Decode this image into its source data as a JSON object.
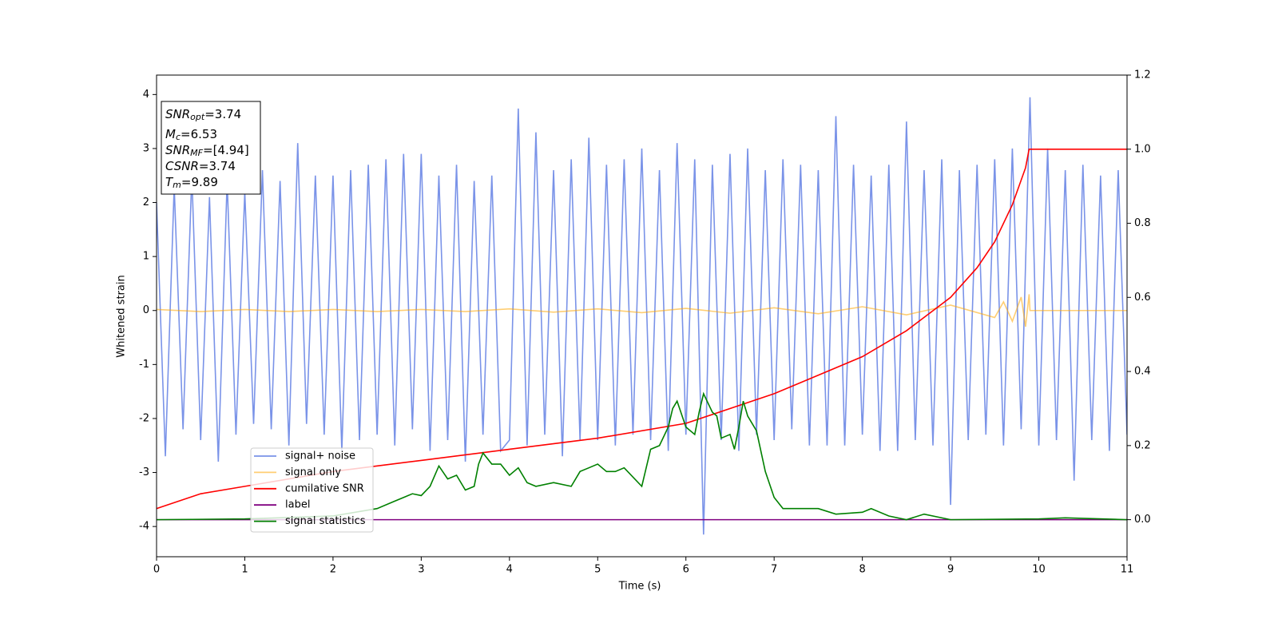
{
  "chart_data": {
    "type": "line",
    "xlabel": "Time (s)",
    "ylabel": "Whitened strain",
    "xlim": [
      0,
      11
    ],
    "xticks": [
      0,
      1,
      2,
      3,
      4,
      5,
      6,
      7,
      8,
      9,
      10,
      11
    ],
    "ylim": [
      -4.56,
      4.36
    ],
    "yticks": [
      -4,
      -3,
      -2,
      -1,
      0,
      1,
      2,
      3,
      4
    ],
    "y2lim": [
      -0.1,
      1.2
    ],
    "y2ticks": [
      {
        "value": 0,
        "label": "0.0"
      },
      0.2,
      0.4,
      0.6,
      0.8,
      {
        "value": 1,
        "label": "1.0"
      },
      1.2
    ],
    "legend_loc": "lower left",
    "annotations": [
      {
        "base": "SNR",
        "sub": "opt",
        "text": "=3.74"
      },
      {
        "base": "M",
        "sub": "c",
        "text": "=6.53"
      },
      {
        "base": "SNR",
        "sub": "MF",
        "text": "=[4.94]"
      },
      {
        "base": "CSNR",
        "sub": null,
        "text": "=3.74"
      },
      {
        "base": "T",
        "sub": "m",
        "text": "=9.89"
      }
    ],
    "series": [
      {
        "name": "signal+ noise",
        "color": "#7a93e8",
        "x": [
          0,
          0.1,
          0.2,
          0.3,
          0.4,
          0.5,
          0.6,
          0.7,
          0.8,
          0.9,
          1,
          1.1,
          1.2,
          1.3,
          1.4,
          1.5,
          1.6,
          1.7,
          1.8,
          1.9,
          2,
          2.1,
          2.2,
          2.3,
          2.4,
          2.5,
          2.6,
          2.7,
          2.8,
          2.9,
          3,
          3.1,
          3.2,
          3.3,
          3.4,
          3.5,
          3.6,
          3.7,
          3.8,
          3.9,
          4,
          4.1,
          4.2,
          4.3,
          4.4,
          4.5,
          4.6,
          4.7,
          4.8,
          4.9,
          5,
          5.1,
          5.2,
          5.3,
          5.4,
          5.5,
          5.6,
          5.7,
          5.8,
          5.9,
          6,
          6.1,
          6.2,
          6.3,
          6.4,
          6.5,
          6.6,
          6.7,
          6.8,
          6.9,
          7,
          7.1,
          7.2,
          7.3,
          7.4,
          7.5,
          7.6,
          7.7,
          7.8,
          7.9,
          8,
          8.1,
          8.2,
          8.3,
          8.4,
          8.5,
          8.6,
          8.7,
          8.8,
          8.9,
          9,
          9.1,
          9.2,
          9.3,
          9.4,
          9.5,
          9.6,
          9.7,
          9.8,
          9.9,
          10,
          10.1,
          10.2,
          10.3,
          10.4,
          10.5,
          10.6,
          10.7,
          10.8,
          10.9,
          11
        ],
        "values": [
          2.0,
          -2.7,
          2.3,
          -2.2,
          2.5,
          -2.4,
          2.1,
          -2.8,
          2.4,
          -2.3,
          2.2,
          -2.1,
          2.6,
          -2.2,
          2.4,
          -2.5,
          3.1,
          -2.1,
          2.5,
          -2.3,
          2.5,
          -2.6,
          2.6,
          -2.4,
          2.7,
          -2.3,
          2.8,
          -2.5,
          2.9,
          -2.2,
          2.9,
          -2.6,
          2.5,
          -2.4,
          2.7,
          -2.8,
          2.4,
          -2.3,
          2.5,
          -2.6,
          -2.4,
          3.74,
          -2.5,
          3.3,
          -2.3,
          2.6,
          -2.7,
          2.8,
          -2.4,
          3.2,
          -2.4,
          2.7,
          -2.5,
          2.8,
          -2.3,
          3.0,
          -2.4,
          2.6,
          -2.6,
          3.1,
          -2.3,
          2.8,
          -4.15,
          2.7,
          -2.4,
          2.9,
          -2.6,
          3.0,
          -2.3,
          2.6,
          -2.4,
          2.8,
          -2.2,
          2.7,
          -2.5,
          2.6,
          -2.5,
          3.6,
          -2.5,
          2.7,
          -2.3,
          2.5,
          -2.6,
          2.7,
          -2.6,
          3.5,
          -2.4,
          2.6,
          -2.5,
          2.8,
          -3.6,
          2.6,
          -2.4,
          2.7,
          -2.3,
          2.8,
          -2.5,
          3.0,
          -2.2,
          3.95,
          -2.5,
          3.0,
          -2.4,
          2.6,
          -3.15,
          2.7,
          -2.4,
          2.5,
          -2.6,
          2.6,
          -2.3
        ]
      },
      {
        "name": "signal only",
        "color": "#ffa500",
        "x": [
          0,
          0.5,
          1,
          1.5,
          2,
          2.5,
          3,
          3.5,
          4,
          4.5,
          5,
          5.5,
          6,
          6.5,
          7,
          7.5,
          8,
          8.5,
          9,
          9.5,
          9.6,
          9.7,
          9.8,
          9.85,
          9.89,
          9.9,
          11
        ],
        "values": [
          0.02,
          -0.02,
          0.02,
          -0.02,
          0.02,
          -0.02,
          0.02,
          -0.02,
          0.03,
          -0.03,
          0.03,
          -0.04,
          0.04,
          -0.05,
          0.05,
          -0.06,
          0.07,
          -0.08,
          0.1,
          -0.13,
          0.16,
          -0.2,
          0.25,
          -0.3,
          0.3,
          0,
          0
        ]
      },
      {
        "name": "cumilative SNR",
        "color": "#ff0000",
        "axis": "y2",
        "x": [
          0,
          0.5,
          1,
          2,
          3,
          4,
          5,
          6,
          7,
          7.5,
          8,
          8.5,
          9,
          9.3,
          9.5,
          9.7,
          9.85,
          9.89,
          11
        ],
        "values": [
          0.03,
          0.07,
          0.09,
          0.13,
          0.16,
          0.19,
          0.22,
          0.26,
          0.34,
          0.39,
          0.44,
          0.51,
          0.6,
          0.68,
          0.75,
          0.85,
          0.95,
          1.0,
          1.0
        ]
      },
      {
        "name": "label",
        "color": "#800080",
        "axis": "y2",
        "x": [
          0,
          11
        ],
        "values": [
          0,
          0
        ]
      },
      {
        "name": "signal statistics",
        "color": "#008000",
        "axis": "y2",
        "x": [
          0,
          1,
          2,
          2.5,
          2.7,
          2.9,
          3.0,
          3.1,
          3.2,
          3.3,
          3.4,
          3.5,
          3.6,
          3.65,
          3.7,
          3.8,
          3.9,
          4.0,
          4.1,
          4.2,
          4.3,
          4.5,
          4.7,
          4.8,
          4.9,
          5.0,
          5.1,
          5.2,
          5.3,
          5.5,
          5.6,
          5.7,
          5.8,
          5.85,
          5.9,
          6.0,
          6.1,
          6.15,
          6.2,
          6.3,
          6.35,
          6.4,
          6.5,
          6.55,
          6.6,
          6.65,
          6.7,
          6.8,
          6.9,
          7.0,
          7.1,
          7.3,
          7.5,
          7.7,
          8.0,
          8.1,
          8.3,
          8.5,
          8.7,
          9.0,
          10.0,
          10.3,
          11
        ],
        "values": [
          0,
          0.002,
          0.01,
          0.03,
          0.05,
          0.07,
          0.065,
          0.09,
          0.145,
          0.11,
          0.12,
          0.08,
          0.09,
          0.15,
          0.18,
          0.15,
          0.15,
          0.12,
          0.14,
          0.1,
          0.09,
          0.1,
          0.09,
          0.13,
          0.14,
          0.15,
          0.13,
          0.13,
          0.14,
          0.09,
          0.19,
          0.2,
          0.25,
          0.3,
          0.32,
          0.25,
          0.23,
          0.29,
          0.34,
          0.29,
          0.28,
          0.22,
          0.23,
          0.19,
          0.25,
          0.32,
          0.28,
          0.24,
          0.13,
          0.06,
          0.03,
          0.03,
          0.03,
          0.015,
          0.02,
          0.03,
          0.01,
          0,
          0.015,
          0,
          0.002,
          0.005,
          0
        ]
      }
    ]
  }
}
